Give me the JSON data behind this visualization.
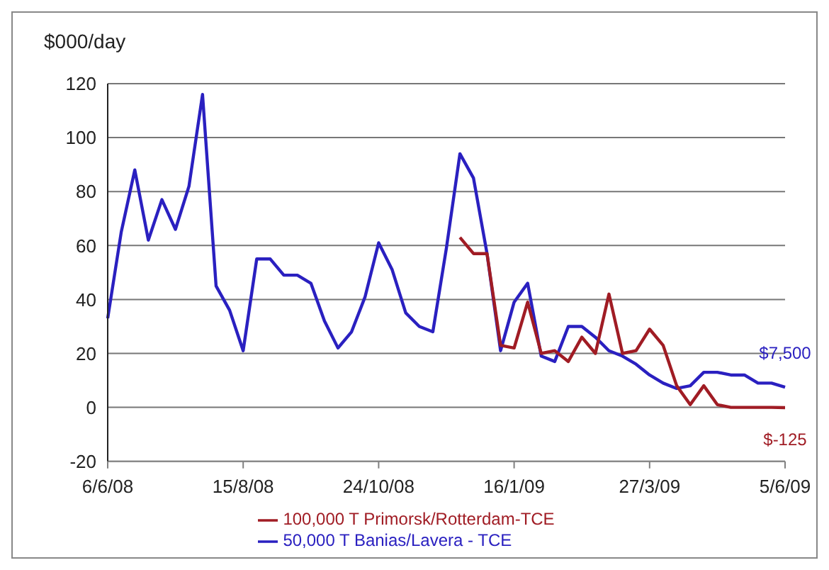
{
  "chart_data": {
    "type": "line",
    "ylabel": "$000/day",
    "categories": [
      "6/6/08",
      null,
      null,
      null,
      null,
      null,
      null,
      null,
      null,
      null,
      "15/8/08",
      null,
      null,
      null,
      null,
      null,
      null,
      null,
      null,
      null,
      "24/10/08",
      null,
      null,
      null,
      null,
      null,
      null,
      null,
      null,
      null,
      "16/1/09",
      null,
      null,
      null,
      null,
      null,
      null,
      null,
      null,
      null,
      "27/3/09",
      null,
      null,
      null,
      null,
      null,
      null,
      null,
      null,
      null,
      "5/6/09"
    ],
    "series": [
      {
        "name": "50,000  T Banias/Lavera  - TCE",
        "color": "#2a20c0",
        "values": [
          33,
          65,
          88,
          62,
          77,
          66,
          82,
          116,
          45,
          36,
          21,
          55,
          55,
          49,
          49,
          46,
          32,
          22,
          28,
          41,
          61,
          51,
          35,
          30,
          28,
          59,
          94,
          85,
          57,
          21,
          39,
          46,
          19,
          17,
          30,
          30,
          26,
          21,
          19,
          16,
          12,
          9,
          7,
          8,
          13,
          13,
          12,
          12,
          9,
          9,
          7.5
        ]
      },
      {
        "name": "100,000  T Primorsk/Rotterdam-TCE",
        "color": "#a01c24",
        "values": [
          null,
          null,
          null,
          null,
          null,
          null,
          null,
          null,
          null,
          null,
          null,
          null,
          null,
          null,
          null,
          null,
          null,
          null,
          null,
          null,
          null,
          null,
          null,
          null,
          null,
          null,
          63,
          57,
          57,
          23,
          22,
          39,
          20,
          21,
          17,
          26,
          20,
          42,
          20,
          21,
          29,
          23,
          8,
          1,
          8,
          1,
          0,
          0,
          0,
          0,
          -0.125
        ]
      }
    ],
    "ylim": [
      -20,
      120
    ],
    "yticks": [
      -20,
      0,
      20,
      40,
      60,
      80,
      100,
      120
    ],
    "grid": "y",
    "legend": "bottom",
    "marker": "none",
    "line_style": "solid",
    "annotations": [
      {
        "text": "$7,500",
        "x": "5/6/09",
        "y": 7.5
      },
      {
        "text": "$-125",
        "x": "5/6/09",
        "y": -0.125
      }
    ]
  }
}
